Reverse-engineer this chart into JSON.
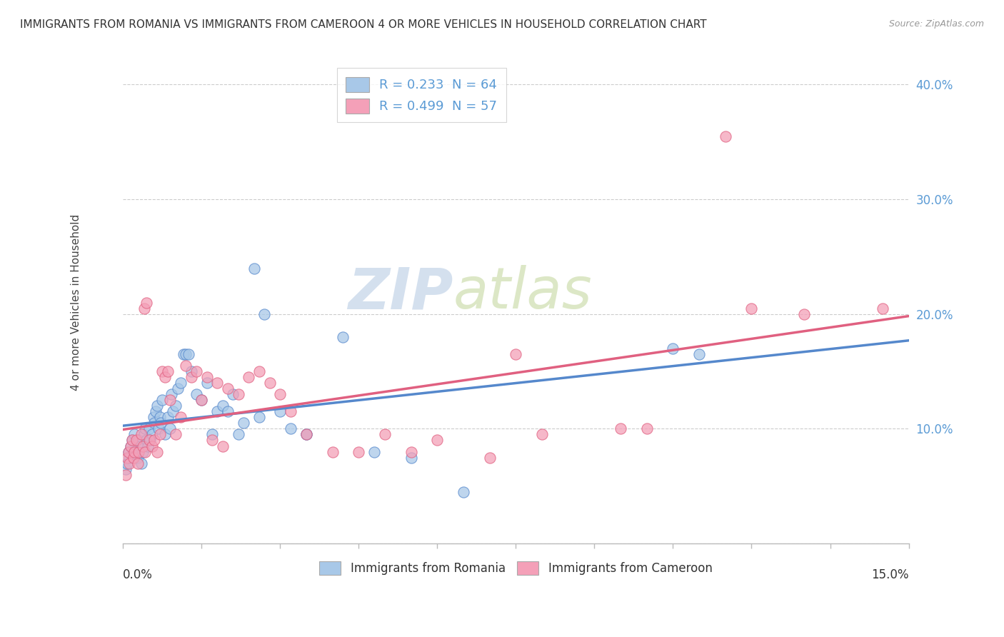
{
  "title": "IMMIGRANTS FROM ROMANIA VS IMMIGRANTS FROM CAMEROON 4 OR MORE VEHICLES IN HOUSEHOLD CORRELATION CHART",
  "source": "Source: ZipAtlas.com",
  "ylabel": "4 or more Vehicles in Household",
  "xlim": [
    0.0,
    15.0
  ],
  "ylim": [
    0.0,
    42.0
  ],
  "ytick_values": [
    0,
    10,
    20,
    30,
    40
  ],
  "ytick_labels": [
    "",
    "10.0%",
    "20.0%",
    "30.0%",
    "40.0%"
  ],
  "legend_r1": "R = 0.233",
  "legend_n1": "N = 64",
  "legend_r2": "R = 0.499",
  "legend_n2": "N = 57",
  "color_romania": "#a8c8e8",
  "color_cameroon": "#f4a0b8",
  "line_color_romania": "#5588cc",
  "line_color_cameroon": "#e06080",
  "watermark_zip": "ZIP",
  "watermark_atlas": "atlas",
  "watermark_color_zip": "#b8cce4",
  "watermark_color_atlas": "#c8d8b0",
  "romania_x": [
    0.05,
    0.08,
    0.1,
    0.12,
    0.15,
    0.18,
    0.2,
    0.22,
    0.25,
    0.28,
    0.3,
    0.32,
    0.35,
    0.38,
    0.4,
    0.42,
    0.45,
    0.48,
    0.5,
    0.52,
    0.55,
    0.58,
    0.6,
    0.62,
    0.65,
    0.68,
    0.7,
    0.72,
    0.75,
    0.8,
    0.85,
    0.9,
    0.92,
    0.95,
    1.0,
    1.05,
    1.1,
    1.15,
    1.2,
    1.25,
    1.3,
    1.4,
    1.5,
    1.6,
    1.7,
    1.8,
    1.9,
    2.0,
    2.1,
    2.2,
    2.3,
    2.5,
    2.6,
    2.7,
    3.0,
    3.2,
    3.5,
    4.2,
    4.8,
    5.5,
    6.5,
    10.5,
    11.0,
    3.5
  ],
  "romania_y": [
    6.5,
    7.0,
    8.0,
    7.5,
    8.5,
    9.0,
    8.0,
    9.5,
    8.0,
    7.5,
    9.0,
    8.5,
    7.0,
    8.0,
    9.5,
    10.0,
    9.0,
    8.5,
    10.0,
    9.0,
    9.5,
    11.0,
    10.5,
    11.5,
    12.0,
    10.0,
    11.0,
    10.5,
    12.5,
    9.5,
    11.0,
    10.0,
    13.0,
    11.5,
    12.0,
    13.5,
    14.0,
    16.5,
    16.5,
    16.5,
    15.0,
    13.0,
    12.5,
    14.0,
    9.5,
    11.5,
    12.0,
    11.5,
    13.0,
    9.5,
    10.5,
    24.0,
    11.0,
    20.0,
    11.5,
    10.0,
    9.5,
    18.0,
    8.0,
    7.5,
    4.5,
    17.0,
    16.5,
    9.5
  ],
  "cameroon_x": [
    0.05,
    0.08,
    0.1,
    0.12,
    0.15,
    0.18,
    0.2,
    0.22,
    0.25,
    0.28,
    0.3,
    0.35,
    0.38,
    0.4,
    0.42,
    0.45,
    0.5,
    0.55,
    0.6,
    0.65,
    0.7,
    0.75,
    0.8,
    0.85,
    0.9,
    1.0,
    1.1,
    1.2,
    1.3,
    1.4,
    1.5,
    1.6,
    1.7,
    1.8,
    1.9,
    2.0,
    2.2,
    2.4,
    2.6,
    2.8,
    3.0,
    3.2,
    3.5,
    4.0,
    4.5,
    5.0,
    5.5,
    6.0,
    7.0,
    7.5,
    8.0,
    9.5,
    10.0,
    11.5,
    12.0,
    13.0,
    14.5
  ],
  "cameroon_y": [
    6.0,
    7.5,
    8.0,
    7.0,
    8.5,
    9.0,
    7.5,
    8.0,
    9.0,
    7.0,
    8.0,
    9.5,
    8.5,
    20.5,
    8.0,
    21.0,
    9.0,
    8.5,
    9.0,
    8.0,
    9.5,
    15.0,
    14.5,
    15.0,
    12.5,
    9.5,
    11.0,
    15.5,
    14.5,
    15.0,
    12.5,
    14.5,
    9.0,
    14.0,
    8.5,
    13.5,
    13.0,
    14.5,
    15.0,
    14.0,
    13.0,
    11.5,
    9.5,
    8.0,
    8.0,
    9.5,
    8.0,
    9.0,
    7.5,
    16.5,
    9.5,
    10.0,
    10.0,
    35.5,
    20.5,
    20.0,
    20.5
  ]
}
